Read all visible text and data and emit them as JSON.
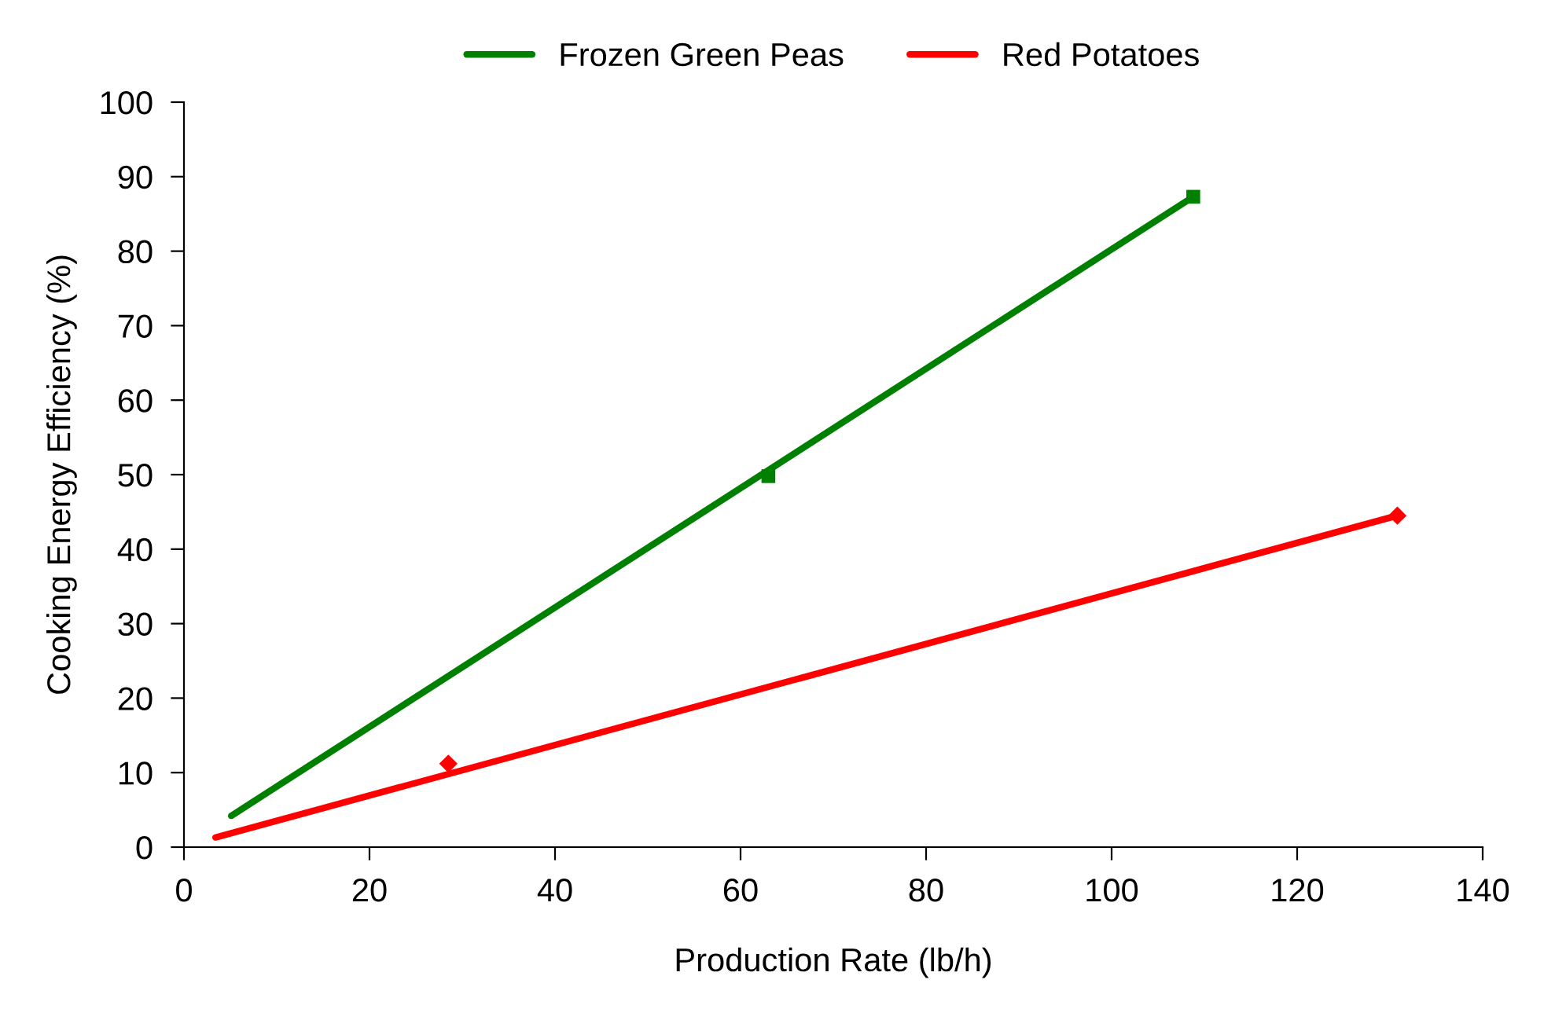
{
  "chart_data": {
    "type": "scatter",
    "xlabel": "Production Rate (lb/h)",
    "ylabel": "Cooking Energy Efficiency (%)",
    "xlim": [
      0,
      140
    ],
    "xticks": [
      0,
      20,
      40,
      60,
      80,
      100,
      120,
      140
    ],
    "ylim": [
      0,
      100
    ],
    "yticks": [
      0,
      10,
      20,
      30,
      40,
      50,
      60,
      70,
      80,
      90,
      100
    ],
    "grid": false,
    "legend": "top",
    "series": [
      {
        "color": "#008000",
        "marker": "square",
        "x": [
          63,
          108.8
        ],
        "values": [
          49.8,
          87.3
        ]
      },
      {
        "color": "#ff0000",
        "marker": "diamond",
        "x": [
          28.5,
          130.8
        ],
        "values": [
          11.2,
          44.5
        ]
      },
      {
        "type": "line",
        "name": "Frozen Green Peas",
        "color": "#008000",
        "line_style": "solid",
        "x": [
          5.1,
          108.8
        ],
        "values": [
          4.2,
          87.3
        ]
      },
      {
        "type": "line",
        "name": "Red Potatoes",
        "color": "#ff0000",
        "line_style": "solid",
        "x": [
          3.4,
          130.8
        ],
        "values": [
          1.3,
          44.5
        ]
      }
    ]
  }
}
